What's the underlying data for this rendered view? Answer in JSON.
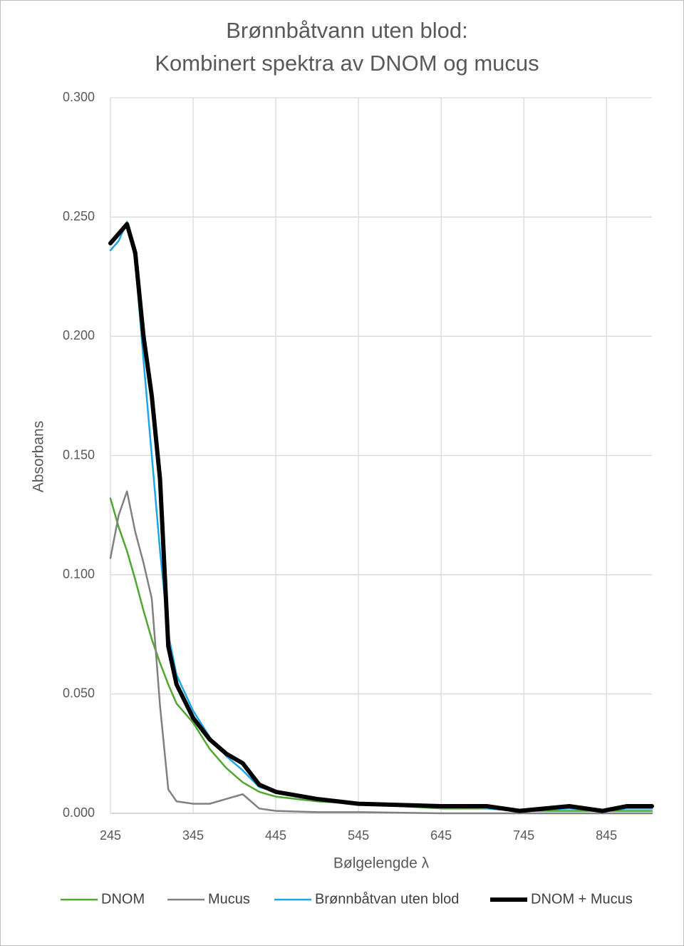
{
  "chart_data": {
    "type": "line",
    "title": [
      "Brønnbåtvann uten blod:",
      "Kombinert spektra av DNOM og mucus"
    ],
    "xlabel": "Bølgelengde  λ",
    "ylabel": "Absorbans",
    "x": [
      245,
      255,
      265,
      275,
      285,
      295,
      305,
      315,
      325,
      345,
      365,
      385,
      405,
      425,
      445,
      495,
      545,
      645,
      700,
      740,
      800,
      840,
      870,
      900
    ],
    "series": [
      {
        "name": "DNOM",
        "color": "#4ea72e",
        "width": 2.5,
        "values": [
          0.132,
          0.12,
          0.11,
          0.098,
          0.085,
          0.073,
          0.063,
          0.054,
          0.046,
          0.038,
          0.027,
          0.019,
          0.013,
          0.009,
          0.007,
          0.005,
          0.004,
          0.002,
          0.002,
          0.001,
          0.001,
          0.001,
          0.001,
          0.001
        ]
      },
      {
        "name": "Mucus",
        "color": "#808080",
        "width": 2.5,
        "values": [
          0.107,
          0.125,
          0.135,
          0.118,
          0.105,
          0.09,
          0.045,
          0.01,
          0.005,
          0.004,
          0.004,
          0.006,
          0.008,
          0.002,
          0.001,
          0.0005,
          0.0005,
          0,
          0,
          0,
          0,
          0,
          0,
          0
        ]
      },
      {
        "name": "Brønnbåtvan uten blod",
        "color": "#1ba6e8",
        "width": 2.5,
        "values": [
          0.236,
          0.24,
          0.248,
          0.232,
          0.19,
          0.15,
          0.11,
          0.075,
          0.058,
          0.043,
          0.032,
          0.024,
          0.018,
          0.011,
          0.009,
          0.006,
          0.004,
          0.003,
          0.002,
          0.001,
          0.002,
          0.001,
          0.002,
          0.002
        ]
      },
      {
        "name": "DNOM + Mucus",
        "color": "#000000",
        "width": 6,
        "values": [
          0.239,
          0.243,
          0.247,
          0.235,
          0.2,
          0.175,
          0.14,
          0.07,
          0.054,
          0.04,
          0.031,
          0.025,
          0.021,
          0.012,
          0.009,
          0.006,
          0.004,
          0.003,
          0.003,
          0.001,
          0.003,
          0.001,
          0.003,
          0.003
        ]
      }
    ],
    "xlim": [
      245,
      900
    ],
    "xticks": [
      245,
      345,
      445,
      545,
      645,
      745,
      845
    ],
    "ylim": [
      0,
      0.3
    ],
    "yticks": [
      {
        "value": 0,
        "label": "0.000"
      },
      {
        "value": 0.05,
        "label": "0.050"
      },
      {
        "value": 0.1,
        "label": "0.100"
      },
      {
        "value": 0.15,
        "label": "0.150"
      },
      {
        "value": 0.2,
        "label": "0.200"
      },
      {
        "value": 0.25,
        "label": "0.250"
      },
      {
        "value": 0.3,
        "label": "0.300"
      }
    ],
    "grid": true,
    "legend": "bottom"
  }
}
